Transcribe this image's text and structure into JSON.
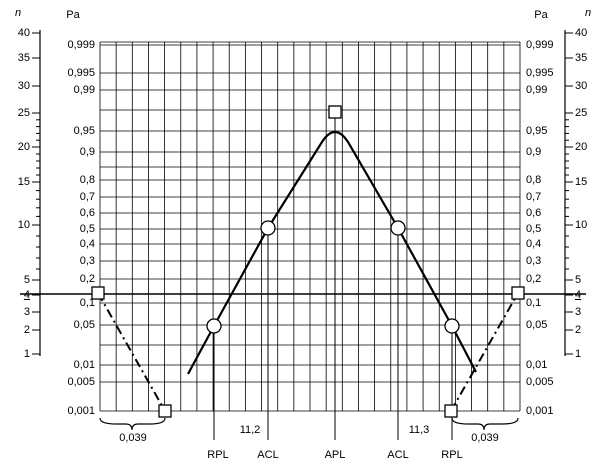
{
  "header": {
    "n_symbol": "n",
    "pa_symbol": "Pa"
  },
  "probability_scale": [
    "0,999",
    "0,995",
    "0,99",
    "0,95",
    "0,9",
    "0,8",
    "0,7",
    "0,6",
    "0,5",
    "0,4",
    "0,3",
    "0,2",
    "0,1",
    "0,05",
    "0,01",
    "0,005",
    "0,001"
  ],
  "n_scale": [
    "40",
    "35",
    "30",
    "25",
    "20",
    "15",
    "10",
    "5",
    "4",
    "3",
    "2",
    "1"
  ],
  "bottom_labels": [
    "RPL",
    "ACL",
    "APL",
    "ACL",
    "RPL"
  ],
  "limit_values": [
    "11,2",
    "11,3"
  ],
  "brace_labels": [
    "0,039",
    "0,039"
  ]
}
